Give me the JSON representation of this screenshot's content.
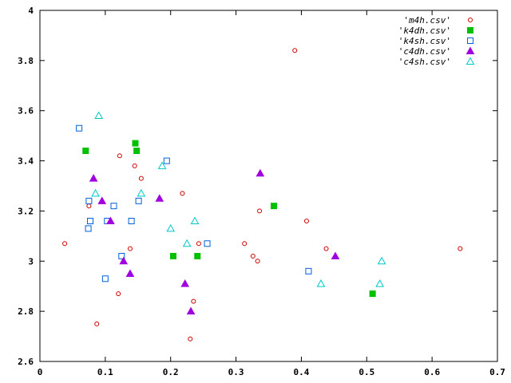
{
  "chart_data": {
    "type": "scatter",
    "title": "",
    "xlabel": "",
    "ylabel": "",
    "xlim": [
      0,
      0.7
    ],
    "ylim": [
      2.6,
      4.0
    ],
    "xticks": [
      "0",
      "0.1",
      "0.2",
      "0.3",
      "0.4",
      "0.5",
      "0.6",
      "0.7"
    ],
    "yticks": [
      "2.6",
      "2.8",
      "3",
      "3.2",
      "3.4",
      "3.6",
      "3.8",
      "4"
    ],
    "grid": false,
    "legend_position": "top-right",
    "series": [
      {
        "name": "'m4h.csv'",
        "marker": "open-circle",
        "color": "#cc0000",
        "points": [
          [
            0.038,
            3.07
          ],
          [
            0.075,
            3.22
          ],
          [
            0.087,
            2.75
          ],
          [
            0.12,
            2.87
          ],
          [
            0.122,
            3.42
          ],
          [
            0.138,
            3.05
          ],
          [
            0.145,
            3.38
          ],
          [
            0.155,
            3.33
          ],
          [
            0.218,
            3.27
          ],
          [
            0.23,
            2.69
          ],
          [
            0.235,
            2.84
          ],
          [
            0.243,
            3.07
          ],
          [
            0.313,
            3.07
          ],
          [
            0.326,
            3.02
          ],
          [
            0.333,
            3.0
          ],
          [
            0.336,
            3.2
          ],
          [
            0.39,
            3.84
          ],
          [
            0.408,
            3.16
          ],
          [
            0.438,
            3.05
          ],
          [
            0.643,
            3.05
          ]
        ]
      },
      {
        "name": "'k4dh.csv'",
        "marker": "filled-square",
        "color": "#00c000",
        "points": [
          [
            0.07,
            3.44
          ],
          [
            0.146,
            3.47
          ],
          [
            0.148,
            3.44
          ],
          [
            0.204,
            3.02
          ],
          [
            0.241,
            3.02
          ],
          [
            0.358,
            3.22
          ],
          [
            0.509,
            2.87
          ]
        ]
      },
      {
        "name": "'k4sh.csv'",
        "marker": "open-square",
        "color": "#0060dd",
        "points": [
          [
            0.06,
            3.53
          ],
          [
            0.074,
            3.13
          ],
          [
            0.075,
            3.24
          ],
          [
            0.077,
            3.16
          ],
          [
            0.1,
            2.93
          ],
          [
            0.103,
            3.16
          ],
          [
            0.113,
            3.22
          ],
          [
            0.125,
            3.02
          ],
          [
            0.14,
            3.16
          ],
          [
            0.151,
            3.24
          ],
          [
            0.194,
            3.4
          ],
          [
            0.256,
            3.07
          ],
          [
            0.411,
            2.96
          ]
        ]
      },
      {
        "name": "'c4dh.csv'",
        "marker": "filled-triangle",
        "color": "#a000e0",
        "points": [
          [
            0.082,
            3.33
          ],
          [
            0.095,
            3.24
          ],
          [
            0.108,
            3.16
          ],
          [
            0.128,
            3.0
          ],
          [
            0.138,
            2.95
          ],
          [
            0.183,
            3.25
          ],
          [
            0.222,
            2.91
          ],
          [
            0.231,
            2.8
          ],
          [
            0.337,
            3.35
          ],
          [
            0.452,
            3.02
          ]
        ]
      },
      {
        "name": "'c4sh.csv'",
        "marker": "open-triangle",
        "color": "#00c8c8",
        "points": [
          [
            0.085,
            3.27
          ],
          [
            0.09,
            3.58
          ],
          [
            0.155,
            3.27
          ],
          [
            0.187,
            3.38
          ],
          [
            0.2,
            3.13
          ],
          [
            0.225,
            3.07
          ],
          [
            0.237,
            3.16
          ],
          [
            0.43,
            2.91
          ],
          [
            0.52,
            2.91
          ],
          [
            0.523,
            3.0
          ]
        ]
      }
    ]
  }
}
